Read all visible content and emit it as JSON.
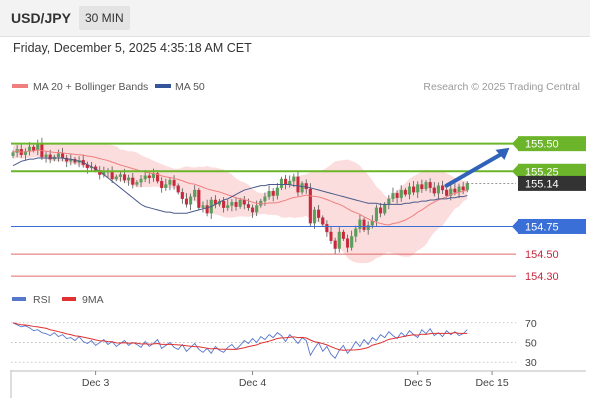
{
  "header": {
    "pair": "USD/JPY",
    "timeframe": "30 MIN",
    "datetime": "Friday, December 5, 2025 4:35:18 AM CET"
  },
  "credit": "Research © 2025 Trading Central",
  "colors": {
    "up": "#5a9e5a",
    "down": "#c8283c",
    "bollinger": "#fbd2d2",
    "ma20": "#f07e7e",
    "ma50": "#4a5a8a",
    "green": "#6cb52a",
    "blue": "#3a6fd8",
    "red": "#e06a6a",
    "rsi": "#5577cc",
    "rsi_ma": "#e03030",
    "current": "#333333"
  },
  "chart_data": [
    {
      "type": "candlestick",
      "title": "USD/JPY",
      "legend": [
        {
          "name": "MA 20 + Bollinger Bands",
          "color": "#f07e7e"
        },
        {
          "name": "MA 50",
          "color": "#335599"
        }
      ],
      "legend_position": "top-left",
      "ylim": [
        154.22,
        155.85
      ],
      "x_ticks": [
        "Dec 3",
        "Dec 4",
        "Dec 5",
        "Dec 15"
      ],
      "x_range": [
        0,
        111
      ],
      "x_tick_positions": [
        20,
        58,
        98,
        116
      ],
      "levels": [
        {
          "value": 155.5,
          "label": "155.50",
          "style": "green",
          "labelled_box": true
        },
        {
          "value": 155.25,
          "label": "155.25",
          "style": "green",
          "labelled_box": true
        },
        {
          "value": 155.14,
          "label": "155.14",
          "style": "current",
          "labelled_box": true
        },
        {
          "value": 154.75,
          "label": "154.75",
          "style": "blue",
          "labelled_box": true
        },
        {
          "value": 154.5,
          "label": "154.50",
          "style": "red",
          "labelled_box": false
        },
        {
          "value": 154.3,
          "label": "154.30",
          "style": "red",
          "labelled_box": false
        }
      ],
      "close": [
        155.42,
        155.45,
        155.4,
        155.43,
        155.47,
        155.44,
        155.5,
        155.38,
        155.4,
        155.36,
        155.38,
        155.41,
        155.37,
        155.34,
        155.36,
        155.33,
        155.35,
        155.31,
        155.28,
        155.29,
        155.26,
        155.22,
        155.24,
        155.25,
        155.18,
        155.2,
        155.22,
        155.17,
        155.19,
        155.13,
        155.15,
        155.18,
        155.21,
        155.19,
        155.23,
        155.16,
        155.1,
        155.13,
        155.17,
        155.12,
        155.06,
        155.0,
        154.95,
        155.02,
        155.08,
        154.92,
        154.94,
        154.87,
        154.99,
        154.95,
        154.98,
        154.92,
        154.94,
        154.97,
        154.93,
        154.99,
        154.95,
        154.92,
        154.88,
        154.94,
        154.98,
        155.02,
        155.07,
        155.03,
        155.1,
        155.18,
        155.13,
        155.16,
        155.2,
        155.06,
        155.14,
        155.09,
        154.78,
        154.9,
        154.83,
        154.77,
        154.7,
        154.62,
        154.55,
        154.7,
        154.64,
        154.56,
        154.66,
        154.73,
        154.81,
        154.72,
        154.76,
        154.8,
        154.92,
        154.87,
        154.95,
        155.0,
        155.05,
        155.01,
        155.08,
        155.04,
        155.11,
        155.06,
        155.13,
        155.09,
        155.15,
        155.1,
        155.05,
        155.12,
        155.08,
        155.03,
        155.09,
        155.06,
        155.11,
        155.08,
        155.14
      ],
      "ma50": [
        155.3,
        155.32,
        155.34,
        155.35,
        155.36,
        155.36,
        155.37,
        155.37,
        155.37,
        155.37,
        155.37,
        155.37,
        155.37,
        155.36,
        155.36,
        155.35,
        155.34,
        155.33,
        155.31,
        155.29,
        155.27,
        155.25,
        155.22,
        155.19,
        155.16,
        155.13,
        155.1,
        155.07,
        155.04,
        155.01,
        154.98,
        154.95,
        154.93,
        154.92,
        154.91,
        154.9,
        154.89,
        154.88,
        154.88,
        154.87,
        154.87,
        154.87,
        154.87,
        154.88,
        154.89,
        154.9,
        154.91,
        154.92,
        154.93,
        154.95,
        154.97,
        154.99,
        155.0,
        155.02,
        155.04,
        155.06,
        155.08,
        155.09,
        155.1,
        155.11,
        155.12,
        155.12,
        155.13,
        155.13,
        155.13,
        155.13,
        155.13,
        155.13,
        155.12,
        155.12,
        155.11,
        155.11,
        155.1,
        155.09,
        155.08,
        155.07,
        155.06,
        155.05,
        155.04,
        155.03,
        155.02,
        155.01,
        155.0,
        154.99,
        154.98,
        154.97,
        154.96,
        154.96,
        154.96,
        154.95,
        154.95,
        154.95,
        154.95,
        154.95,
        154.95,
        154.96,
        154.96,
        154.97,
        154.97,
        154.98,
        154.98,
        154.99,
        154.99,
        155.0,
        155.0,
        155.0,
        155.01,
        155.01,
        155.02,
        155.02,
        155.03
      ],
      "annotations": [
        {
          "type": "arrow",
          "from": [
            104,
            155.12
          ],
          "to": [
            111,
            155.48
          ]
        }
      ]
    },
    {
      "type": "line",
      "title": "RSI",
      "legend": [
        {
          "name": "RSI",
          "color": "#5577cc"
        },
        {
          "name": "9MA",
          "color": "#e03030"
        }
      ],
      "y_ticks": [
        70,
        50,
        30
      ],
      "ylim": [
        20,
        80
      ],
      "rsi": [
        70,
        68,
        66,
        67,
        65,
        62,
        63,
        60,
        59,
        57,
        60,
        56,
        58,
        54,
        55,
        52,
        56,
        51,
        49,
        52,
        47,
        50,
        53,
        48,
        51,
        46,
        49,
        52,
        47,
        50,
        48,
        45,
        51,
        46,
        49,
        53,
        44,
        47,
        50,
        45,
        43,
        48,
        41,
        45,
        49,
        43,
        40,
        44,
        39,
        46,
        42,
        40,
        45,
        48,
        43,
        47,
        52,
        49,
        54,
        50,
        56,
        53,
        58,
        55,
        60,
        57,
        51,
        58,
        54,
        49,
        55,
        52,
        37,
        44,
        50,
        41,
        46,
        38,
        34,
        42,
        47,
        39,
        44,
        51,
        46,
        53,
        48,
        55,
        52,
        58,
        55,
        61,
        57,
        54,
        60,
        56,
        62,
        58,
        55,
        63,
        59,
        64,
        57,
        60,
        56,
        62,
        58,
        61,
        57,
        59,
        63
      ]
    }
  ]
}
